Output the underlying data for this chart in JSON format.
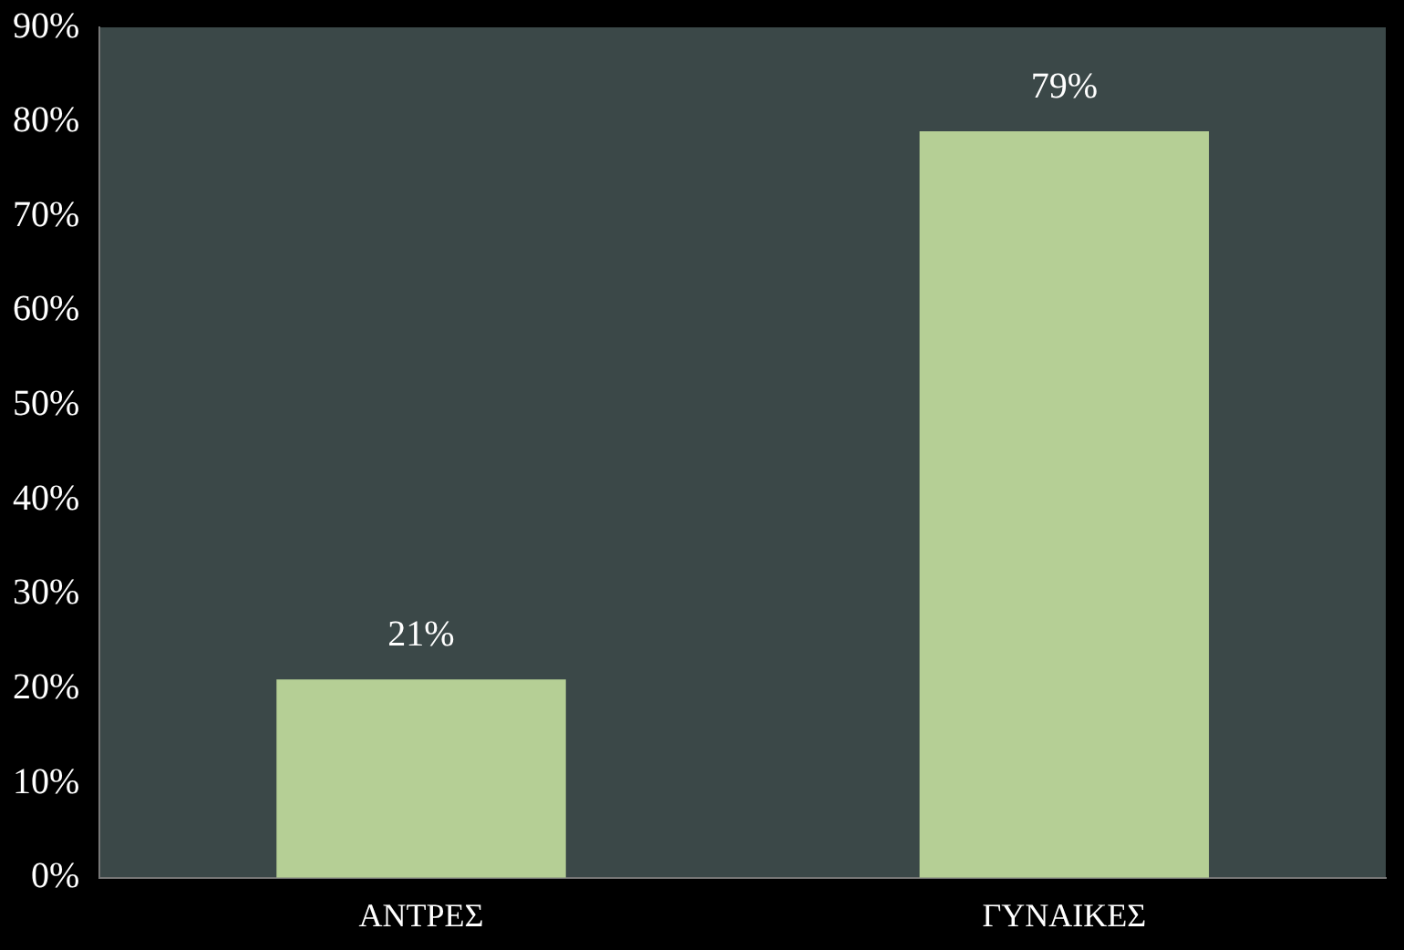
{
  "chart_data": {
    "type": "bar",
    "categories": [
      "ΑΝΤΡΕΣ",
      "ΓΥΝΑΙΚΕΣ"
    ],
    "values": [
      21,
      79
    ],
    "color": "#b5cf95",
    "value_labels": [
      "21%",
      "79%"
    ],
    "ylim": [
      0,
      90
    ],
    "yticks": [
      {
        "value": 0,
        "label": "0%"
      },
      {
        "value": 10,
        "label": "10%"
      },
      {
        "value": 20,
        "label": "20%"
      },
      {
        "value": 30,
        "label": "30%"
      },
      {
        "value": 40,
        "label": "40%"
      },
      {
        "value": 50,
        "label": "50%"
      },
      {
        "value": 60,
        "label": "60%"
      },
      {
        "value": 70,
        "label": "70%"
      },
      {
        "value": 80,
        "label": "80%"
      },
      {
        "value": 90,
        "label": "90%"
      }
    ],
    "grid": false,
    "legend": false
  }
}
